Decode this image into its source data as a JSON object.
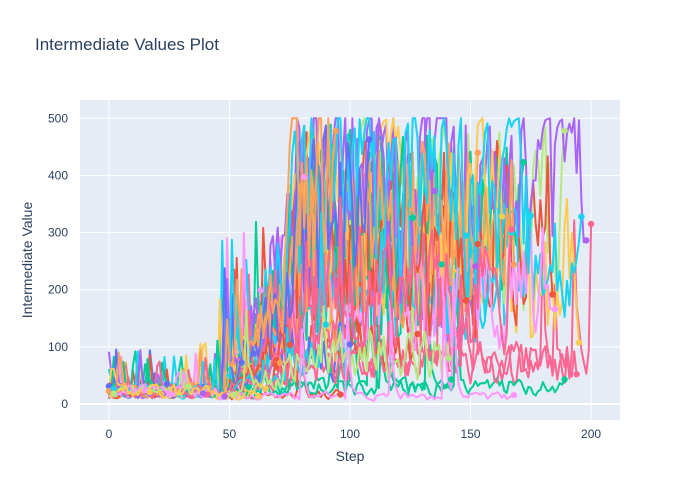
{
  "chart_data": {
    "type": "line",
    "title": "Intermediate Values Plot",
    "xlabel": "Step",
    "ylabel": "Intermediate Value",
    "xlim": [
      -12,
      212
    ],
    "ylim": [
      -28,
      532
    ],
    "x_ticks": [
      0,
      50,
      100,
      150,
      200
    ],
    "y_ticks": [
      0,
      100,
      200,
      300,
      400,
      500
    ],
    "grid": true,
    "legend": "none",
    "markers": "final point of each trial",
    "background_color": "#e5ecf6",
    "grid_color": "#ffffff",
    "text_color": "#2a3f5f",
    "palette": [
      "#636efa",
      "#EF553B",
      "#00cc96",
      "#ab63fa",
      "#FFA15A",
      "#19d3f3",
      "#FF6692",
      "#B6E880",
      "#FF97FF",
      "#FECB52"
    ],
    "series_count": 60,
    "series_generator": {
      "seed": 12345,
      "steps": [
        0,
        200
      ],
      "phases": [
        {
          "from": 0,
          "to": 45,
          "base": [
            10,
            40
          ],
          "spike_max": 140
        },
        {
          "from": 45,
          "to": 75,
          "base": [
            20,
            300
          ],
          "spike_max": 460
        },
        {
          "from": 75,
          "to": 200,
          "base": [
            10,
            500
          ],
          "cap": 500
        }
      ]
    }
  }
}
